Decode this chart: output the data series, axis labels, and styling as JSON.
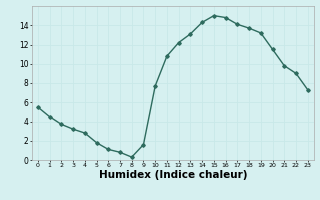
{
  "x": [
    0,
    1,
    2,
    3,
    4,
    5,
    6,
    7,
    8,
    9,
    10,
    11,
    12,
    13,
    14,
    15,
    16,
    17,
    18,
    19,
    20,
    21,
    22,
    23
  ],
  "y": [
    5.5,
    4.5,
    3.7,
    3.2,
    2.8,
    1.8,
    1.1,
    0.8,
    0.3,
    1.6,
    7.7,
    10.8,
    12.2,
    13.1,
    14.3,
    15.0,
    14.8,
    14.1,
    13.7,
    13.2,
    11.5,
    9.8,
    9.0,
    7.3
  ],
  "xlabel": "Humidex (Indice chaleur)",
  "ylim": [
    0,
    16
  ],
  "xlim": [
    -0.5,
    23.5
  ],
  "yticks": [
    0,
    2,
    4,
    6,
    8,
    10,
    12,
    14
  ],
  "xticks": [
    0,
    1,
    2,
    3,
    4,
    5,
    6,
    7,
    8,
    9,
    10,
    11,
    12,
    13,
    14,
    15,
    16,
    17,
    18,
    19,
    20,
    21,
    22,
    23
  ],
  "line_color": "#2e6b5e",
  "marker": "D",
  "markersize": 1.8,
  "bg_color": "#d6f0f0",
  "grid_color": "#c8e8e8",
  "linewidth": 1.0,
  "xlabel_fontsize": 7.5,
  "xtick_fontsize": 4.5,
  "ytick_fontsize": 5.5
}
